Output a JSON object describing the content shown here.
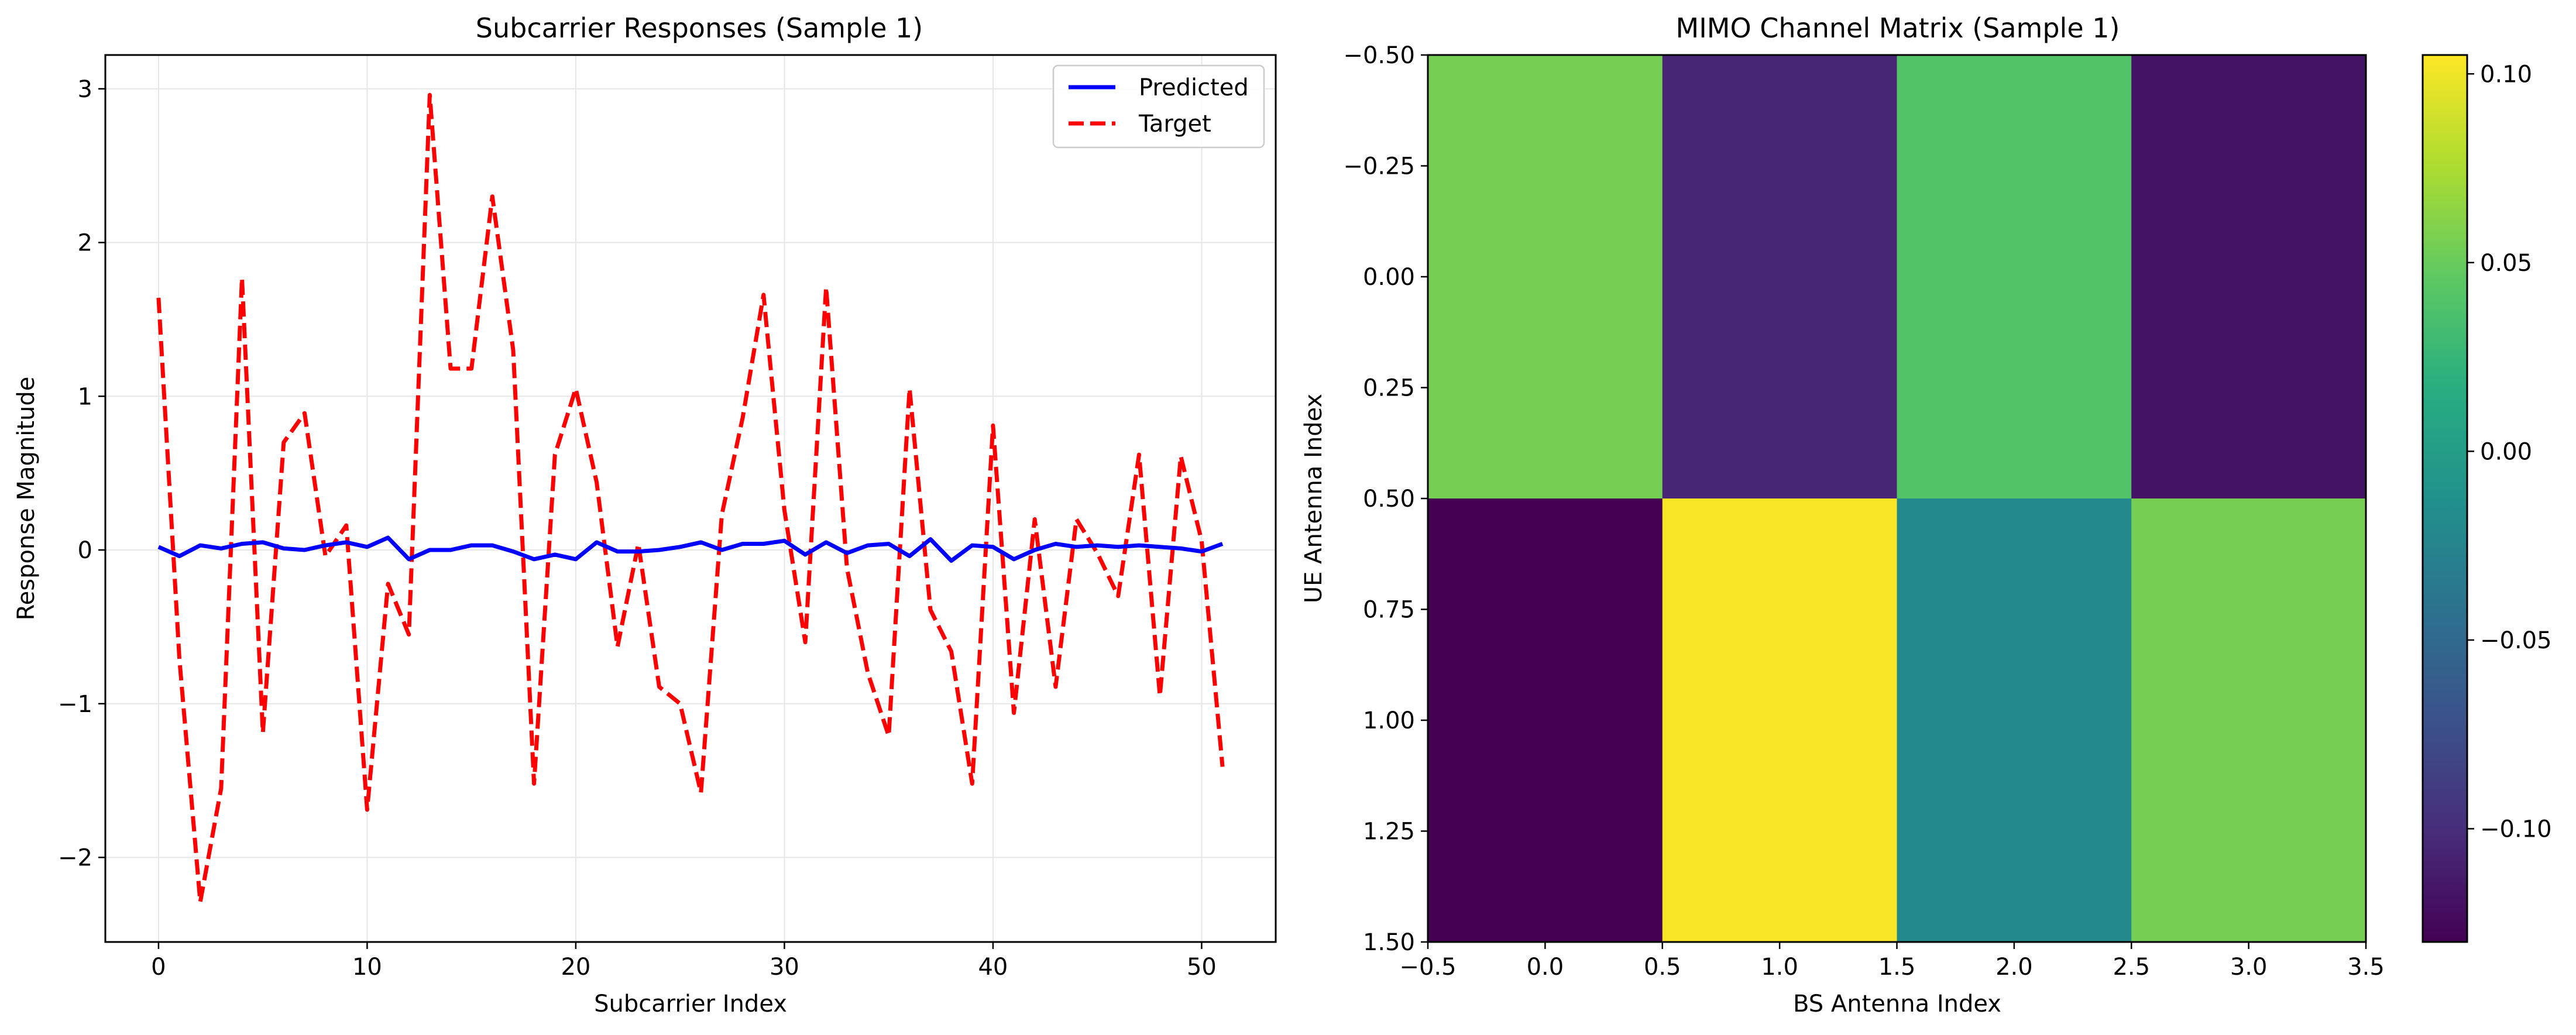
{
  "chart_data": [
    {
      "type": "line",
      "title": "Subcarrier Responses (Sample 1)",
      "xlabel": "Subcarrier Index",
      "ylabel": "Response Magnitude",
      "xlim": [
        -2.55,
        53.55
      ],
      "ylim": [
        -2.55,
        3.22
      ],
      "xticks": [
        0,
        10,
        20,
        30,
        40,
        50
      ],
      "yticks": [
        -2,
        -1,
        0,
        1,
        2,
        3
      ],
      "grid": true,
      "legend_position": "top-right",
      "series": [
        {
          "name": "Predicted",
          "color": "#0000ff",
          "style": "solid",
          "x": [
            0,
            1,
            2,
            3,
            4,
            5,
            6,
            7,
            8,
            9,
            10,
            11,
            12,
            13,
            14,
            15,
            16,
            17,
            18,
            19,
            20,
            21,
            22,
            23,
            24,
            25,
            26,
            27,
            28,
            29,
            30,
            31,
            32,
            33,
            34,
            35,
            36,
            37,
            38,
            39,
            40,
            41,
            42,
            43,
            44,
            45,
            46,
            47,
            48,
            49,
            50,
            51
          ],
          "values": [
            0.02,
            -0.04,
            0.03,
            0.01,
            0.04,
            0.05,
            0.01,
            0.0,
            0.03,
            0.05,
            0.02,
            0.08,
            -0.06,
            0.0,
            0.0,
            0.03,
            0.03,
            -0.01,
            -0.06,
            -0.03,
            -0.06,
            0.05,
            -0.01,
            -0.01,
            0.0,
            0.02,
            0.05,
            0.0,
            0.04,
            0.04,
            0.06,
            -0.03,
            0.05,
            -0.02,
            0.03,
            0.04,
            -0.04,
            0.07,
            -0.07,
            0.03,
            0.02,
            -0.06,
            0.0,
            0.04,
            0.02,
            0.03,
            0.02,
            0.03,
            0.02,
            0.01,
            -0.01,
            0.04
          ]
        },
        {
          "name": "Target",
          "color": "#ff0000",
          "style": "dashed",
          "x": [
            0,
            1,
            2,
            3,
            4,
            5,
            6,
            7,
            8,
            9,
            10,
            11,
            12,
            13,
            14,
            15,
            16,
            17,
            18,
            19,
            20,
            21,
            22,
            23,
            24,
            25,
            26,
            27,
            28,
            29,
            30,
            31,
            32,
            33,
            34,
            35,
            36,
            37,
            38,
            39,
            40,
            41,
            42,
            43,
            44,
            45,
            46,
            47,
            48,
            49,
            50,
            51
          ],
          "values": [
            1.64,
            -0.71,
            -2.29,
            -1.55,
            1.77,
            -1.19,
            0.7,
            0.89,
            -0.04,
            0.16,
            -1.69,
            -0.22,
            -0.55,
            2.96,
            1.18,
            1.18,
            2.3,
            1.3,
            -1.52,
            0.62,
            1.05,
            0.44,
            -0.63,
            0.04,
            -0.89,
            -1.0,
            -1.58,
            0.23,
            0.86,
            1.66,
            0.26,
            -0.6,
            1.71,
            -0.12,
            -0.8,
            -1.21,
            1.05,
            -0.39,
            -0.66,
            -1.52,
            0.81,
            -1.06,
            0.2,
            -0.89,
            0.2,
            -0.02,
            -0.3,
            0.62,
            -0.95,
            0.61,
            0.06,
            -1.41
          ]
        }
      ]
    },
    {
      "type": "heatmap",
      "title": "MIMO Channel Matrix (Sample 1)",
      "xlabel": "BS Antenna Index",
      "ylabel": "UE Antenna Index",
      "xlim": [
        -0.5,
        3.5
      ],
      "ylim": [
        1.5,
        -0.5
      ],
      "xticks": [
        "-0.5",
        "0.0",
        "0.5",
        "1.0",
        "1.5",
        "2.0",
        "2.5",
        "3.0",
        "3.5"
      ],
      "yticks": [
        "-0.50",
        "-0.25",
        "0.00",
        "0.25",
        "0.50",
        "0.75",
        "1.00",
        "1.25",
        "1.50"
      ],
      "colormap": "viridis",
      "colorbar_range": [
        -0.13,
        0.105
      ],
      "colorbar_ticks": [
        "-0.10",
        "-0.05",
        "0.00",
        "0.05",
        "0.10"
      ],
      "matrix": [
        [
          0.055,
          -0.105,
          0.04,
          -0.118
        ],
        [
          -0.13,
          0.103,
          -0.02,
          0.055
        ]
      ]
    }
  ]
}
